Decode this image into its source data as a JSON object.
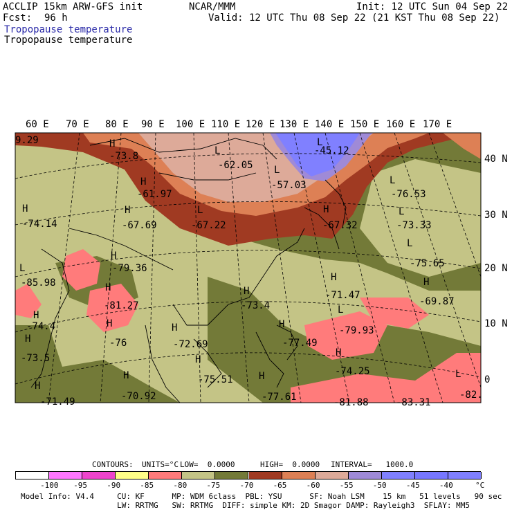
{
  "header": {
    "model": "ACCLIP 15km ARW-GFS init",
    "center": "NCAR/MMM",
    "init": "Init: 12 UTC Sun 04 Sep 22",
    "fcst_label": "Fcst:",
    "fcst_value": "96 h",
    "valid": "Valid: 12 UTC Thu 08 Sep 22 (21 KST Thu 08 Sep 22)",
    "field_title_1": "Tropopause temperature",
    "field_title_2": "Tropopause temperature"
  },
  "map": {
    "lon_labels": [
      "60 E",
      "70 E",
      "80 E",
      "90 E",
      "100 E",
      "110 E",
      "120 E",
      "130 E",
      "140 E",
      "150 E",
      "160 E",
      "170 E"
    ],
    "lat_labels": [
      "40 N",
      "30 N",
      "20 N",
      "10 N",
      "0"
    ],
    "annotations": [
      {
        "kind": "H",
        "text": "H"
      },
      {
        "kind": "value",
        "text": "-73.8"
      },
      {
        "kind": "L",
        "text": "L"
      },
      {
        "kind": "value",
        "text": "-62.05"
      },
      {
        "kind": "L",
        "text": "L"
      },
      {
        "kind": "value",
        "text": "-45.12"
      },
      {
        "kind": "L",
        "text": "L"
      },
      {
        "kind": "value",
        "text": "-57.03"
      },
      {
        "kind": "H",
        "text": "H"
      },
      {
        "kind": "value",
        "text": "-61.97"
      },
      {
        "kind": "L",
        "text": "L"
      },
      {
        "kind": "value",
        "text": "-76.53"
      },
      {
        "kind": "H",
        "text": "H"
      },
      {
        "kind": "value",
        "text": "-74.14"
      },
      {
        "kind": "H",
        "text": "H"
      },
      {
        "kind": "value",
        "text": "-67.69"
      },
      {
        "kind": "L",
        "text": "L"
      },
      {
        "kind": "value",
        "text": "-67.22"
      },
      {
        "kind": "H",
        "text": "H"
      },
      {
        "kind": "value",
        "text": "-67.32"
      },
      {
        "kind": "L",
        "text": "L"
      },
      {
        "kind": "value",
        "text": "-73.33"
      },
      {
        "kind": "L",
        "text": "L"
      },
      {
        "kind": "value",
        "text": "-75.65"
      },
      {
        "kind": "H",
        "text": "H"
      },
      {
        "kind": "value",
        "text": "-79.36"
      },
      {
        "kind": "L",
        "text": "L"
      },
      {
        "kind": "value",
        "text": "-85.98"
      },
      {
        "kind": "H",
        "text": "H"
      },
      {
        "kind": "value",
        "text": "-71.47"
      },
      {
        "kind": "H",
        "text": "H"
      },
      {
        "kind": "value",
        "text": "-69.87"
      },
      {
        "kind": "H",
        "text": "H"
      },
      {
        "kind": "value",
        "text": "-81.27"
      },
      {
        "kind": "H",
        "text": "H"
      },
      {
        "kind": "value",
        "text": "-73.4"
      },
      {
        "kind": "H",
        "text": "H"
      },
      {
        "kind": "value",
        "text": "-74.4"
      },
      {
        "kind": "L",
        "text": "L"
      },
      {
        "kind": "value",
        "text": "-79.93"
      },
      {
        "kind": "H",
        "text": "H"
      },
      {
        "kind": "value",
        "text": "-76"
      },
      {
        "kind": "H",
        "text": "H"
      },
      {
        "kind": "value",
        "text": "-72.69"
      },
      {
        "kind": "H",
        "text": "H"
      },
      {
        "kind": "value",
        "text": "-77.49"
      },
      {
        "kind": "H",
        "text": "H"
      },
      {
        "kind": "value",
        "text": "-73.5"
      },
      {
        "kind": "H",
        "text": "H"
      },
      {
        "kind": "value",
        "text": "-74.25"
      },
      {
        "kind": "H",
        "text": "H"
      },
      {
        "kind": "value",
        "text": "-75.51"
      },
      {
        "kind": "H",
        "text": "H"
      },
      {
        "kind": "value",
        "text": "-70.92"
      },
      {
        "kind": "H",
        "text": "H"
      },
      {
        "kind": "value",
        "text": "-77.61"
      },
      {
        "kind": "L",
        "text": "L"
      },
      {
        "kind": "value",
        "text": "-82."
      },
      {
        "kind": "H",
        "text": "H"
      },
      {
        "kind": "value",
        "text": "-71.49"
      },
      {
        "kind": "value",
        "text": "-81.88"
      },
      {
        "kind": "value",
        "text": "-83.31"
      },
      {
        "kind": "value",
        "text": "9.29"
      }
    ]
  },
  "contours": {
    "label": "CONTOURS:",
    "units": "UNITS=°C",
    "low": "LOW=  0.0000",
    "high": "HIGH=  0.0000",
    "interval": "INTERVAL=   1000.0"
  },
  "colorbar": {
    "colors": [
      "#ffffff",
      "#ff77ff",
      "#ee44cc",
      "#ffff88",
      "#ff7b7b",
      "#c4c486",
      "#737a38",
      "#a03a22",
      "#dd8055",
      "#ddaa99",
      "#9f8ad7",
      "#8080ff",
      "#7777ff",
      "#8080ff"
    ],
    "labels": [
      "-100",
      "-95",
      "-90",
      "-85",
      "-80",
      "-75",
      "-70",
      "-65",
      "-60",
      "-55",
      "-50",
      "-45",
      "-40",
      "°C"
    ]
  },
  "footer": {
    "line1": "Model Info: V4.4     CU: KF      MP: WDM 6class  PBL: YSU      SF: Noah LSM    15 km   51 levels   90 sec",
    "line2": "                     LW: RRTMG   SW: RRTMG  DIFF: simple KM: 2D Smagor DAMP: Rayleigh3  SFLAY: MM5"
  }
}
